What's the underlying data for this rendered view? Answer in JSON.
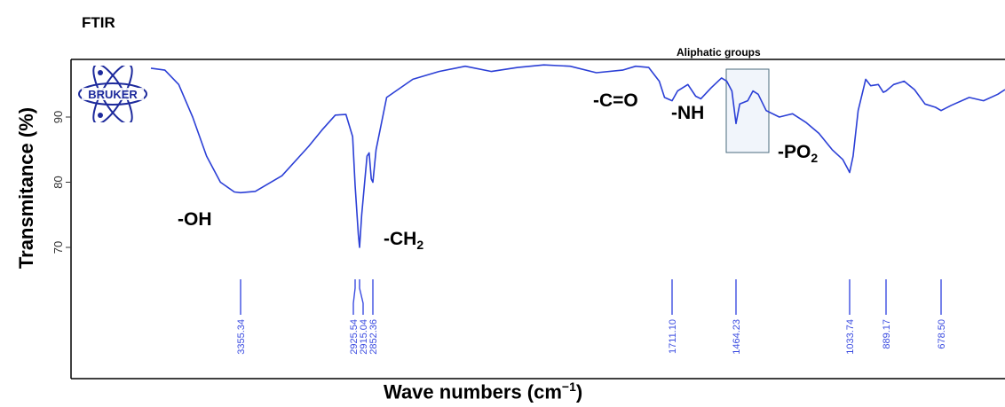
{
  "page_title": "FTIR",
  "chart_data": {
    "type": "line",
    "title": "FTIR",
    "xlabel": "Wave numbers (cm⁻¹)",
    "xlabel_main": "Wave numbers (cm",
    "xlabel_exp": "−1",
    "xlabel_close": ")",
    "ylabel": "Transmitance (%)",
    "x_reversed": true,
    "y_ticks": [
      "70",
      "80",
      "90"
    ],
    "y_tick_values": [
      70,
      80,
      90
    ],
    "line_color": "#2b3fd6",
    "peak_marker_color": "#3b4ce0",
    "series": [
      {
        "values_note": "",
        "x": [
          4000,
          3900,
          3800,
          3700,
          3600,
          3500,
          3400,
          3355.34,
          3300,
          3200,
          3100,
          3050,
          3000,
          2960,
          2935,
          2925.54,
          2918,
          2915.04,
          2905,
          2880,
          2870,
          2860,
          2852.36,
          2840,
          2800,
          2700,
          2600,
          2500,
          2400,
          2300,
          2200,
          2100,
          2000,
          1900,
          1850,
          1800,
          1760,
          1740,
          1711.1,
          1690,
          1650,
          1620,
          1600,
          1560,
          1520,
          1500,
          1480,
          1464.23,
          1450,
          1420,
          1400,
          1380,
          1350,
          1300,
          1250,
          1200,
          1150,
          1100,
          1060,
          1040,
          1033.74,
          1020,
          1000,
          970,
          950,
          920,
          900,
          889.17,
          860,
          820,
          780,
          740,
          700,
          678.5,
          650,
          600,
          560,
          520,
          500
        ],
        "y": [
          97.5,
          97.2,
          95.0,
          90.0,
          84.0,
          80.0,
          78.5,
          78.4,
          78.6,
          81.0,
          85.5,
          88.0,
          90.3,
          90.4,
          87.0,
          79.5,
          72.0,
          70.0,
          75.0,
          84.0,
          84.5,
          80.5,
          80.0,
          85.0,
          93.0,
          95.8,
          97.0,
          97.8,
          97.0,
          97.6,
          98.0,
          97.8,
          96.8,
          97.2,
          97.8,
          97.6,
          95.5,
          93.0,
          92.5,
          94.0,
          95.0,
          93.2,
          92.8,
          94.5,
          96.0,
          95.5,
          94.0,
          89.0,
          92.0,
          92.5,
          94.0,
          93.5,
          91.0,
          90.0,
          90.5,
          89.2,
          87.5,
          85.0,
          83.5,
          82.0,
          81.5,
          84.0,
          91.0,
          95.8,
          94.8,
          95.0,
          93.8,
          94.0,
          95.0,
          95.5,
          94.2,
          92.0,
          91.5,
          91.0,
          91.8,
          93.0,
          92.5,
          93.5,
          94.2
        ]
      }
    ],
    "peaks": [
      "3355.34",
      "2925.54",
      "2915.04",
      "2852.36",
      "1711.10",
      "1464.23",
      "1033.74",
      "889.17",
      "678.50"
    ],
    "annotations": [
      {
        "text": "-OH",
        "sub": ""
      },
      {
        "text": "-CH",
        "sub": "2"
      },
      {
        "text": "-C=O",
        "sub": ""
      },
      {
        "text": "-NH",
        "sub": ""
      },
      {
        "text": "-PO",
        "sub": "2"
      }
    ],
    "region": {
      "label": "Aliphatic  groups"
    },
    "logo_text": "BRUKER",
    "grid": false
  }
}
